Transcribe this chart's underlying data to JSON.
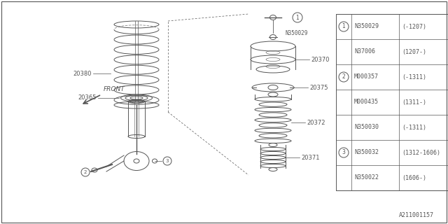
{
  "bg_color": "#ffffff",
  "line_color": "#555555",
  "table_rows": [
    {
      "circle": "1",
      "part": "N350029",
      "date": "(-1207)"
    },
    {
      "circle": "",
      "part": "N37006",
      "date": "(1207-)"
    },
    {
      "circle": "2",
      "part": "M000357",
      "date": "(-1311)"
    },
    {
      "circle": "",
      "part": "M000435",
      "date": "(1311-)"
    },
    {
      "circle": "",
      "part": "N350030",
      "date": "(-1311)"
    },
    {
      "circle": "3",
      "part": "N350032",
      "date": "(1312-1606)"
    },
    {
      "circle": "",
      "part": "N350022",
      "date": "(1606-)"
    }
  ],
  "footer": "A211001157"
}
